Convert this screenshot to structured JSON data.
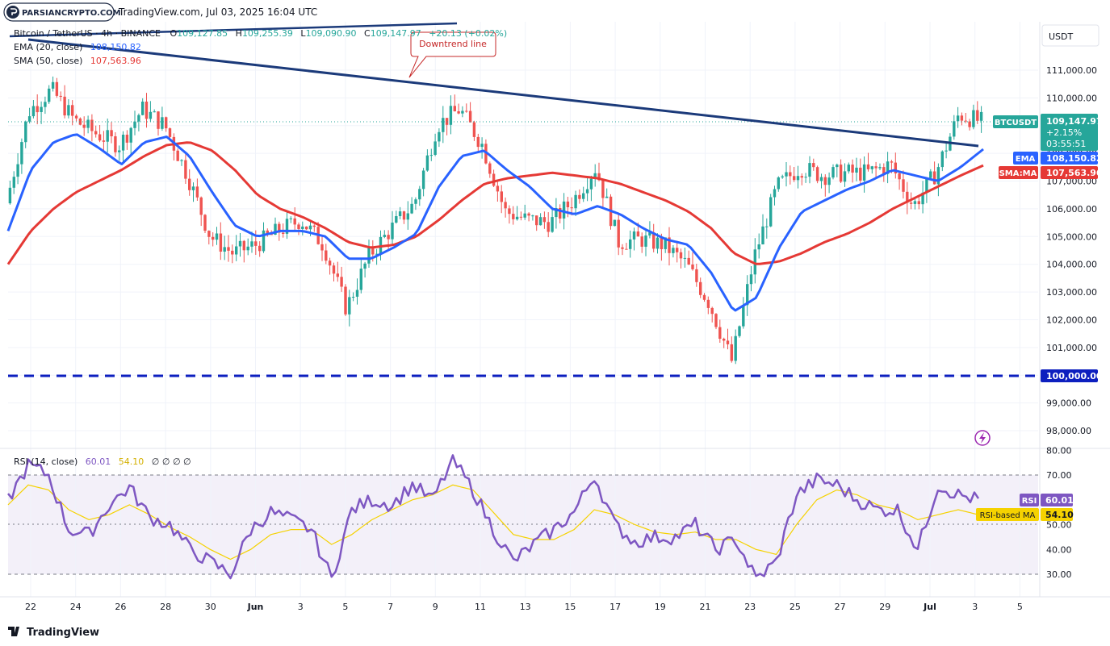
{
  "header": {
    "brand": "PARSIANCRYPTO.COM",
    "source_line": "TradingView.com, Jul 03, 2025 16:04 UTC"
  },
  "legend": {
    "symbol": "Bitcoin / TetherUS · 4h · BINANCE",
    "o_label": "O",
    "o": "109,127.85",
    "h_label": "H",
    "h": "109,255.39",
    "l_label": "L",
    "l": "109,090.90",
    "c_label": "C",
    "c": "109,147.97",
    "change": "+20.13 (+0.02%)",
    "ema_label": "EMA (20, close)",
    "ema_value": "108,150.82",
    "sma_label": "SMA (50, close)",
    "sma_value": "107,563.96"
  },
  "rsi_legend": {
    "label": "RSI (14, close)",
    "rsi": "60.01",
    "rsi_ma": "54.10",
    "extra": "∅ ∅ ∅ ∅"
  },
  "price_scale": {
    "currency": "USDT",
    "ticks": [
      "111,000.00",
      "110,000.00",
      "109,000.00",
      "108,000.00",
      "107,000.00",
      "106,000.00",
      "105,000.00",
      "104,000.00",
      "103,000.00",
      "102,000.00",
      "101,000.00",
      "100,000.00",
      "99,000.00",
      "98,000.00"
    ]
  },
  "rsi_scale": {
    "ticks": [
      "80.00",
      "70.00",
      "60.00",
      "50.00",
      "40.00",
      "30.00"
    ]
  },
  "time_axis": [
    "22",
    "24",
    "26",
    "28",
    "30",
    "Jun",
    "3",
    "5",
    "7",
    "9",
    "11",
    "13",
    "15",
    "17",
    "19",
    "21",
    "23",
    "25",
    "27",
    "29",
    "Jul",
    "3",
    "5"
  ],
  "badges": {
    "ticker": "BTCUSDT",
    "price": "109,147.97",
    "pct": "+2.15%",
    "countdown": "03:55:51",
    "ema_tag": "EMA",
    "ema_val": "108,150.82",
    "sma_tag": "SMA:MA",
    "sma_val": "107,563.96",
    "level_val": "100,000.00",
    "rsi_tag": "RSI",
    "rsi_val": "60.01",
    "rsima_tag": "RSI-based MA",
    "rsima_val": "54.10"
  },
  "annotation": {
    "text": "Downtrend line"
  },
  "footer": {
    "logo": "TradingView"
  },
  "colors": {
    "up": "#26a69a",
    "down": "#ef5350",
    "ema": "#2962ff",
    "sma": "#e53935",
    "trend": "#1b3a7a",
    "rsi": "#7e57c2",
    "rsi_ma": "#f5d200",
    "level": "#0d1fbf"
  },
  "chart_data": {
    "type": "candlestick",
    "symbol": "BTCUSDT",
    "interval": "4h",
    "y_range": [
      97800,
      111600
    ],
    "rsi_range": [
      22,
      80
    ],
    "key_levels": [
      {
        "value": 100000,
        "style": "dashed"
      }
    ],
    "trendline": {
      "label": "Downtrend line",
      "from": {
        "date": "May 22",
        "price": 111600
      },
      "to": {
        "date": "Jul 3",
        "price": 108200
      }
    },
    "x_dates": [
      "May 21",
      "May 22",
      "May 23",
      "May 24",
      "May 25",
      "May 26",
      "May 27",
      "May 28",
      "May 29",
      "May 30",
      "May 31",
      "Jun 1",
      "Jun 2",
      "Jun 3",
      "Jun 4",
      "Jun 5",
      "Jun 6",
      "Jun 7",
      "Jun 8",
      "Jun 9",
      "Jun 10",
      "Jun 11",
      "Jun 12",
      "Jun 13",
      "Jun 14",
      "Jun 15",
      "Jun 16",
      "Jun 17",
      "Jun 18",
      "Jun 19",
      "Jun 20",
      "Jun 21",
      "Jun 22",
      "Jun 23",
      "Jun 24",
      "Jun 25",
      "Jun 26",
      "Jun 27",
      "Jun 28",
      "Jun 29",
      "Jun 30",
      "Jul 1",
      "Jul 2",
      "Jul 3"
    ],
    "close_path": [
      106200,
      109500,
      110300,
      109200,
      108700,
      108300,
      109600,
      109000,
      107200,
      105000,
      104400,
      104700,
      105200,
      105600,
      104700,
      102400,
      104300,
      105300,
      106200,
      109000,
      109600,
      108300,
      105900,
      105600,
      105500,
      106300,
      107500,
      104800,
      104900,
      104700,
      104000,
      102600,
      100500,
      104300,
      106800,
      107500,
      107200,
      107300,
      107300,
      107600,
      106100,
      107300,
      109400,
      109148
    ],
    "ema20_path": [
      105200,
      107400,
      108400,
      108700,
      108200,
      107600,
      108400,
      108600,
      107900,
      106600,
      105400,
      105000,
      105200,
      105200,
      105000,
      104200,
      104200,
      104600,
      105100,
      106800,
      107900,
      108100,
      107400,
      106800,
      106000,
      105800,
      106100,
      105800,
      105300,
      104900,
      104700,
      103700,
      102300,
      102800,
      104600,
      105900,
      106300,
      106700,
      107000,
      107400,
      107200,
      107000,
      107500,
      108150
    ],
    "sma50_path": [
      104000,
      105200,
      106000,
      106600,
      107000,
      107400,
      107900,
      108300,
      108400,
      108100,
      107400,
      106500,
      106000,
      105700,
      105300,
      104800,
      104600,
      104700,
      105000,
      105600,
      106300,
      106900,
      107100,
      107200,
      107300,
      107200,
      107100,
      106900,
      106600,
      106300,
      105900,
      105300,
      104400,
      104000,
      104100,
      104400,
      104800,
      105100,
      105500,
      106000,
      106400,
      106800,
      107200,
      107564
    ],
    "rsi_path": [
      60,
      74,
      70,
      48,
      46,
      58,
      65,
      53,
      50,
      40,
      35,
      30,
      48,
      55,
      52,
      48,
      28,
      56,
      60,
      58,
      66,
      60,
      76,
      64,
      48,
      35,
      42,
      48,
      55,
      70,
      50,
      43,
      45,
      45,
      50,
      40,
      44,
      28,
      35,
      62,
      68,
      66,
      60,
      56,
      56,
      40,
      66,
      62,
      60
    ],
    "rsi_ma_path": [
      58,
      66,
      64,
      56,
      52,
      54,
      58,
      54,
      49,
      45,
      40,
      36,
      40,
      46,
      48,
      48,
      42,
      46,
      52,
      56,
      60,
      62,
      66,
      64,
      55,
      46,
      44,
      44,
      48,
      56,
      54,
      50,
      47,
      46,
      47,
      44,
      44,
      40,
      38,
      50,
      60,
      64,
      62,
      58,
      56,
      52,
      54,
      56,
      54
    ]
  }
}
